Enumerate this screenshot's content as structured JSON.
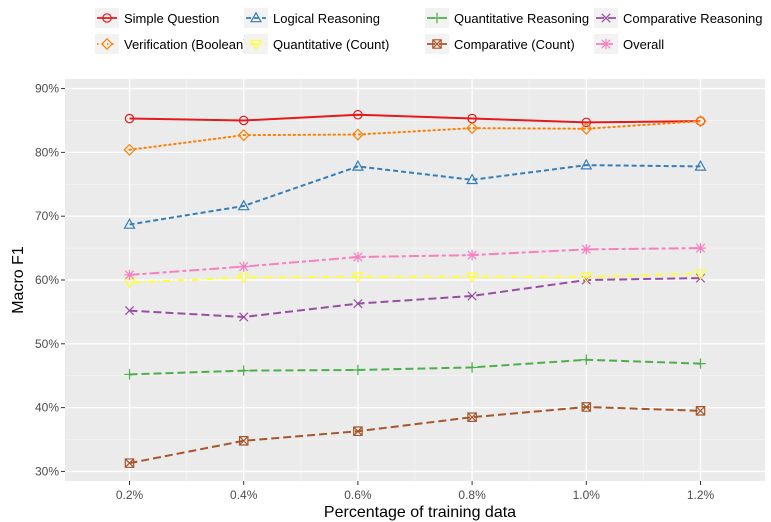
{
  "chart_data": {
    "type": "line",
    "title": "",
    "xlabel": "Percentage of training data",
    "ylabel": "Macro F1",
    "x": [
      "0.2%",
      "0.4%",
      "0.6%",
      "0.8%",
      "1.0%",
      "1.2%"
    ],
    "ylim": [
      28.5,
      91.5
    ],
    "yticks": [
      30,
      40,
      50,
      60,
      70,
      80,
      90
    ],
    "ytick_labels": [
      "30%",
      "40%",
      "50%",
      "60%",
      "70%",
      "80%",
      "90%"
    ],
    "grid": true,
    "legend_position": "top",
    "series": [
      {
        "name": "Simple Question",
        "color": "#e41a1c",
        "dash": "solid",
        "marker": "circle",
        "values": [
          85.3,
          85.0,
          85.9,
          85.3,
          84.7,
          84.9
        ]
      },
      {
        "name": "Logical Reasoning",
        "color": "#377eb8",
        "dash": "dashed",
        "marker": "triangle",
        "values": [
          68.7,
          71.6,
          77.8,
          75.7,
          78.0,
          77.8
        ]
      },
      {
        "name": "Quantitative Reasoning",
        "color": "#4daf4a",
        "dash": "longdash",
        "marker": "plus",
        "values": [
          45.2,
          45.8,
          45.9,
          46.3,
          47.5,
          46.9
        ]
      },
      {
        "name": "Comparative Reasoning",
        "color": "#984ea3",
        "dash": "longdash",
        "marker": "cross",
        "values": [
          55.2,
          54.2,
          56.3,
          57.5,
          60.0,
          60.3
        ]
      },
      {
        "name": "Verification (Boolean)",
        "color": "#ff7f00",
        "dash": "dotted",
        "marker": "diamond",
        "values": [
          80.4,
          82.7,
          82.8,
          83.8,
          83.7,
          84.9
        ]
      },
      {
        "name": "Quantitative (Count)",
        "color": "#ffff33",
        "dash": "dotdash",
        "marker": "triangle-down",
        "values": [
          59.6,
          60.4,
          60.5,
          60.5,
          60.5,
          61.0
        ]
      },
      {
        "name": "Comparative (Count)",
        "color": "#a65628",
        "dash": "longdash",
        "marker": "square-cross",
        "values": [
          31.3,
          34.8,
          36.3,
          38.5,
          40.1,
          39.5
        ]
      },
      {
        "name": "Overall",
        "color": "#f781bf",
        "dash": "twodash",
        "marker": "asterisk",
        "values": [
          60.8,
          62.1,
          63.6,
          63.9,
          64.8,
          65.0
        ]
      }
    ]
  }
}
